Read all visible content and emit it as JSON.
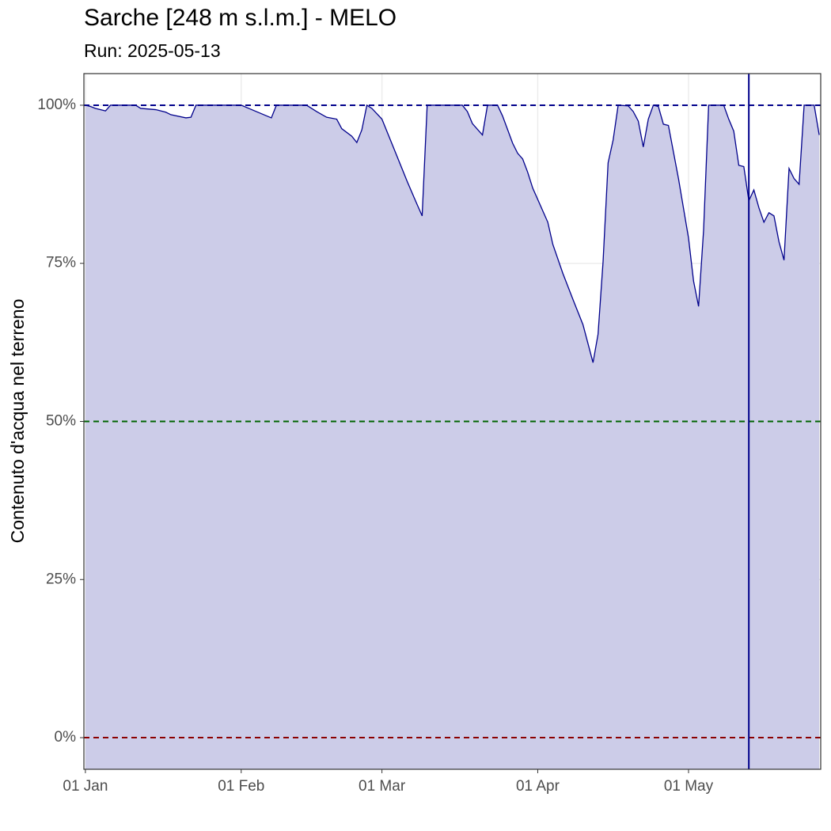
{
  "chart_data": {
    "type": "area",
    "title": "Sarche [248 m s.l.m.] - MELO",
    "subtitle": "Run: 2025-05-13",
    "y_label": "Contenuto d'acqua nel terreno",
    "x": [
      0,
      1,
      2,
      4,
      5,
      10,
      11,
      14,
      16,
      17,
      20,
      21,
      22,
      31,
      34,
      37,
      38,
      44,
      46,
      48,
      50,
      51,
      53,
      54,
      55,
      56,
      57,
      59,
      61,
      64,
      66,
      67,
      68,
      75,
      76,
      77,
      79,
      80,
      82,
      83,
      85,
      86,
      87,
      88,
      89,
      92,
      93,
      95,
      97,
      99,
      101,
      102,
      103,
      104,
      105,
      106,
      108,
      109,
      110,
      111,
      112,
      113,
      114,
      115,
      116,
      118,
      120,
      121,
      122,
      123,
      124,
      127,
      128,
      129,
      130,
      131,
      132,
      133,
      134,
      135,
      136,
      137,
      138,
      139,
      140,
      141,
      142,
      143,
      145,
      146
    ],
    "series": [
      {
        "name": "Contenuto d'acqua",
        "color": "#00008b",
        "fill": "#cccce8",
        "values": [
          100,
          99.8,
          99.5,
          99.1,
          100,
          100,
          99.5,
          99.3,
          98.9,
          98.5,
          98,
          98.1,
          100,
          100,
          99,
          98,
          100,
          100,
          99,
          98.1,
          97.8,
          96.3,
          95.1,
          94.1,
          96.1,
          100,
          99.5,
          97.8,
          93.9,
          88,
          84.3,
          82.5,
          100,
          100,
          99,
          97.1,
          95.3,
          100,
          100,
          98.3,
          94,
          92.4,
          91.5,
          89.4,
          86.9,
          81.5,
          78,
          73.4,
          69.3,
          65.3,
          59.3,
          63.8,
          75.3,
          90.9,
          94.5,
          100,
          99.9,
          99,
          97.5,
          93.4,
          97.8,
          100,
          99.8,
          97,
          96.8,
          88.4,
          79,
          72.2,
          68.2,
          80.3,
          100,
          100,
          97.8,
          95.9,
          90.5,
          90.3,
          84.9,
          86.6,
          83.8,
          81.5,
          83,
          82.5,
          78.4,
          75.5,
          90,
          88.4,
          87.5,
          100,
          100,
          95.3
        ]
      }
    ],
    "xlim": [
      -0.3,
      146.3
    ],
    "xticks": [
      {
        "value": 0,
        "label": "01 Jan"
      },
      {
        "value": 31,
        "label": "01 Feb"
      },
      {
        "value": 59,
        "label": "01 Mar"
      },
      {
        "value": 90,
        "label": "01 Apr"
      },
      {
        "value": 120,
        "label": "01 May"
      }
    ],
    "ylim": [
      -5,
      105
    ],
    "yticks": [
      {
        "value": 0,
        "label": "0%"
      },
      {
        "value": 25,
        "label": "25%"
      },
      {
        "value": 50,
        "label": "50%"
      },
      {
        "value": 75,
        "label": "75%"
      },
      {
        "value": 100,
        "label": "100%"
      }
    ],
    "hlines": [
      {
        "value": 100,
        "color": "#00008b"
      },
      {
        "value": 50,
        "color": "#006400"
      },
      {
        "value": 0,
        "color": "#8b0000"
      }
    ],
    "vline": {
      "value": 132,
      "color": "#00008b"
    },
    "grid": true
  }
}
